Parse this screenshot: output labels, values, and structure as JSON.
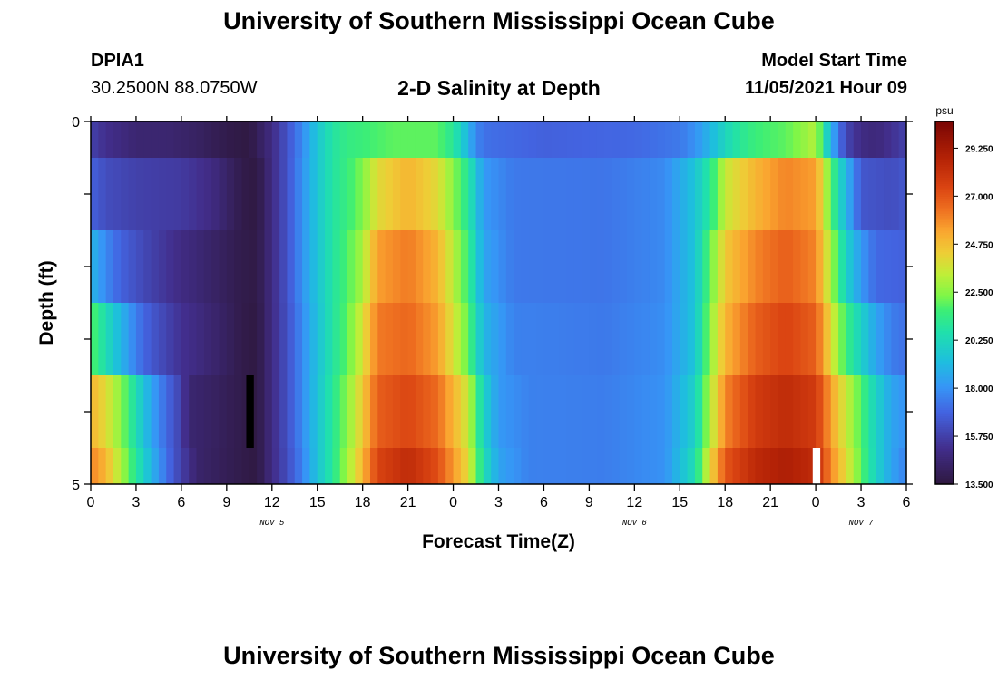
{
  "header": {
    "title": "University of Southern Mississippi Ocean Cube",
    "station_id": "DPIA1",
    "station_coords": "30.2500N  88.0750W",
    "subtitle": "2-D Salinity at Depth",
    "model_start_label": "Model Start Time",
    "model_start_value": "11/05/2021 Hour 09"
  },
  "footer": {
    "title": "University of Southern Mississippi Ocean Cube"
  },
  "chart_data": {
    "type": "heatmap",
    "title": "2-D Salinity at Depth",
    "xlabel": "Forecast Time(Z)",
    "ylabel": "Depth (ft)",
    "x_range_hours": [
      0,
      54
    ],
    "y_range": [
      0,
      5
    ],
    "y_ticks": [
      "0",
      "5"
    ],
    "x_tick_labels": [
      "0",
      "3",
      "6",
      "9",
      "12",
      "15",
      "18",
      "21",
      "0",
      "3",
      "6",
      "9",
      "12",
      "15",
      "18",
      "21",
      "0",
      "3",
      "6"
    ],
    "date_labels": [
      {
        "label": "NOV 5",
        "hour": 12
      },
      {
        "label": "NOV 6",
        "hour": 36
      },
      {
        "label": "NOV 7",
        "hour": 51
      }
    ],
    "colorbar": {
      "unit": "psu",
      "min": 13.5,
      "max": 30.5,
      "tick_labels": [
        "29.250",
        "27.000",
        "24.750",
        "22.500",
        "20.250",
        "18.000",
        "15.750",
        "13.500"
      ],
      "ticks": [
        29.25,
        27.0,
        24.75,
        22.5,
        20.25,
        18.0,
        15.75,
        13.5
      ]
    },
    "columns_per_hour": 2,
    "rows": [
      {
        "depth_range": [
          0,
          0.5
        ],
        "keyframes": [
          [
            0,
            15.8
          ],
          [
            1,
            15.2
          ],
          [
            3,
            14.6
          ],
          [
            5,
            14.6
          ],
          [
            7,
            14.3
          ],
          [
            9,
            13.8
          ],
          [
            10.5,
            13.6
          ],
          [
            12,
            15.0
          ],
          [
            13,
            16.4
          ],
          [
            14,
            17.8
          ],
          [
            15,
            19.6
          ],
          [
            16,
            20.8
          ],
          [
            17,
            21.4
          ],
          [
            20,
            22.0
          ],
          [
            23,
            22.0
          ],
          [
            24,
            21.0
          ],
          [
            25,
            19.0
          ],
          [
            25.5,
            17.8
          ],
          [
            26,
            17.2
          ],
          [
            30,
            16.8
          ],
          [
            36,
            17.0
          ],
          [
            39,
            17.4
          ],
          [
            40,
            18.0
          ],
          [
            41,
            19.0
          ],
          [
            42,
            20.2
          ],
          [
            43,
            21.0
          ],
          [
            44,
            21.6
          ],
          [
            46,
            22.0
          ],
          [
            47,
            22.5
          ],
          [
            48,
            23.2
          ],
          [
            48.5,
            21.0
          ],
          [
            49,
            19.0
          ],
          [
            49.5,
            17.4
          ],
          [
            50,
            16.0
          ],
          [
            51,
            15.0
          ],
          [
            52,
            14.8
          ],
          [
            53,
            15.3
          ],
          [
            54,
            15.8
          ]
        ]
      },
      {
        "depth_range": [
          0.5,
          1.5
        ],
        "keyframes": [
          [
            0,
            16.8
          ],
          [
            1,
            16.2
          ],
          [
            3,
            15.8
          ],
          [
            6,
            15.6
          ],
          [
            8,
            15.0
          ],
          [
            9,
            14.4
          ],
          [
            10,
            13.8
          ],
          [
            11,
            13.6
          ],
          [
            12,
            15.0
          ],
          [
            13,
            16.4
          ],
          [
            14,
            18.0
          ],
          [
            15,
            19.6
          ],
          [
            16,
            20.8
          ],
          [
            17,
            21.5
          ],
          [
            18,
            22.4
          ],
          [
            19,
            24.0
          ],
          [
            21,
            25.0
          ],
          [
            23,
            24.0
          ],
          [
            25,
            21.0
          ],
          [
            26,
            18.2
          ],
          [
            28,
            17.4
          ],
          [
            34,
            17.3
          ],
          [
            38,
            17.8
          ],
          [
            40,
            19.5
          ],
          [
            41,
            21.0
          ],
          [
            42,
            23.5
          ],
          [
            44,
            25.0
          ],
          [
            46,
            26.0
          ],
          [
            48,
            25.5
          ],
          [
            49,
            22.0
          ],
          [
            50,
            19.0
          ],
          [
            51,
            16.5
          ],
          [
            53,
            16.2
          ],
          [
            54,
            16.5
          ]
        ]
      },
      {
        "depth_range": [
          1.5,
          2.5
        ],
        "keyframes": [
          [
            0,
            19.0
          ],
          [
            1,
            17.8
          ],
          [
            2,
            16.8
          ],
          [
            4,
            15.8
          ],
          [
            6,
            15.0
          ],
          [
            8,
            14.4
          ],
          [
            10,
            13.8
          ],
          [
            11,
            13.7
          ],
          [
            12,
            15.0
          ],
          [
            13,
            16.4
          ],
          [
            14,
            18.0
          ],
          [
            15,
            19.5
          ],
          [
            16,
            20.8
          ],
          [
            17,
            21.8
          ],
          [
            18,
            23.0
          ],
          [
            19,
            25.5
          ],
          [
            21,
            26.2
          ],
          [
            23,
            25.0
          ],
          [
            25,
            21.5
          ],
          [
            26,
            18.5
          ],
          [
            28,
            17.4
          ],
          [
            34,
            17.3
          ],
          [
            38,
            17.8
          ],
          [
            40,
            19.5
          ],
          [
            41,
            22.0
          ],
          [
            42,
            24.5
          ],
          [
            44,
            26.0
          ],
          [
            46,
            26.8
          ],
          [
            48,
            26.0
          ],
          [
            49,
            23.0
          ],
          [
            50,
            20.0
          ],
          [
            51,
            18.2
          ],
          [
            52,
            17.0
          ],
          [
            54,
            16.8
          ]
        ]
      },
      {
        "depth_range": [
          2.5,
          3.5
        ],
        "keyframes": [
          [
            0,
            22.0
          ],
          [
            1,
            20.5
          ],
          [
            2,
            19.0
          ],
          [
            3,
            17.5
          ],
          [
            4,
            16.5
          ],
          [
            6,
            15.3
          ],
          [
            8,
            14.6
          ],
          [
            10,
            13.8
          ],
          [
            11,
            13.6
          ],
          [
            12,
            15.0
          ],
          [
            13,
            16.3
          ],
          [
            14,
            17.8
          ],
          [
            15,
            19.4
          ],
          [
            16,
            20.8
          ],
          [
            17,
            22.0
          ],
          [
            18,
            23.8
          ],
          [
            19,
            26.2
          ],
          [
            21,
            26.6
          ],
          [
            23,
            25.5
          ],
          [
            25,
            22.0
          ],
          [
            26,
            19.0
          ],
          [
            28,
            17.6
          ],
          [
            34,
            17.4
          ],
          [
            38,
            17.9
          ],
          [
            40,
            19.5
          ],
          [
            41,
            22.5
          ],
          [
            42,
            25.0
          ],
          [
            44,
            26.8
          ],
          [
            46,
            27.5
          ],
          [
            48,
            26.8
          ],
          [
            49,
            24.0
          ],
          [
            50,
            21.5
          ],
          [
            51,
            20.0
          ],
          [
            52,
            18.5
          ],
          [
            53,
            17.5
          ],
          [
            54,
            17.2
          ]
        ]
      },
      {
        "depth_range": [
          3.5,
          4.5
        ],
        "keyframes": [
          [
            0,
            25.0
          ],
          [
            1,
            24.0
          ],
          [
            2,
            22.5
          ],
          [
            3,
            20.5
          ],
          [
            4,
            18.5
          ],
          [
            5,
            17.0
          ],
          [
            6,
            15.8
          ],
          [
            6.5,
            14.6
          ],
          [
            8,
            14.3
          ],
          [
            10,
            13.8
          ],
          [
            11,
            13.6
          ],
          [
            12,
            15.0
          ],
          [
            13,
            16.3
          ],
          [
            14,
            17.8
          ],
          [
            15,
            19.5
          ],
          [
            16,
            21.0
          ],
          [
            17,
            22.5
          ],
          [
            18,
            24.5
          ],
          [
            19,
            26.8
          ],
          [
            21,
            27.4
          ],
          [
            23,
            26.5
          ],
          [
            25,
            23.5
          ],
          [
            26,
            20.0
          ],
          [
            27,
            18.2
          ],
          [
            29,
            17.6
          ],
          [
            34,
            17.5
          ],
          [
            38,
            18.0
          ],
          [
            40,
            20.0
          ],
          [
            41,
            23.0
          ],
          [
            42,
            26.0
          ],
          [
            44,
            27.8
          ],
          [
            46,
            28.4
          ],
          [
            48,
            27.8
          ],
          [
            49,
            25.5
          ],
          [
            50,
            23.5
          ],
          [
            51,
            21.8
          ],
          [
            52,
            20.0
          ],
          [
            53,
            18.5
          ],
          [
            54,
            18.0
          ]
        ]
      },
      {
        "depth_range": [
          4.5,
          5
        ],
        "keyframes": [
          [
            0,
            26.0
          ],
          [
            1,
            25.0
          ],
          [
            2,
            23.0
          ],
          [
            3,
            21.0
          ],
          [
            4,
            19.0
          ],
          [
            5,
            17.2
          ],
          [
            6,
            15.8
          ],
          [
            7,
            14.5
          ],
          [
            9,
            14.0
          ],
          [
            10,
            13.8
          ],
          [
            11,
            13.6
          ],
          [
            12,
            15.0
          ],
          [
            13,
            16.2
          ],
          [
            14,
            17.6
          ],
          [
            15,
            19.5
          ],
          [
            16,
            21.0
          ],
          [
            17,
            22.8
          ],
          [
            18,
            25.0
          ],
          [
            19,
            27.5
          ],
          [
            21,
            28.4
          ],
          [
            23,
            27.2
          ],
          [
            25,
            24.0
          ],
          [
            26,
            20.5
          ],
          [
            27,
            18.5
          ],
          [
            29,
            17.6
          ],
          [
            34,
            17.5
          ],
          [
            38,
            18.0
          ],
          [
            40,
            20.5
          ],
          [
            41,
            24.0
          ],
          [
            42,
            27.0
          ],
          [
            44,
            28.5
          ],
          [
            46,
            29.0
          ],
          [
            48,
            28.4
          ],
          [
            49,
            26.0
          ],
          [
            50,
            24.0
          ],
          [
            51,
            22.0
          ],
          [
            52,
            20.0
          ],
          [
            53,
            18.5
          ],
          [
            54,
            17.6
          ]
        ]
      }
    ],
    "gaps": [
      {
        "x_range_hours": [
          10.3,
          10.8
        ],
        "depth_range": [
          3.5,
          4.5
        ],
        "color": "#000000"
      },
      {
        "x_range_hours": [
          47.8,
          48.3
        ],
        "depth_range": [
          4.5,
          5
        ],
        "color": "#ffffff"
      }
    ]
  }
}
